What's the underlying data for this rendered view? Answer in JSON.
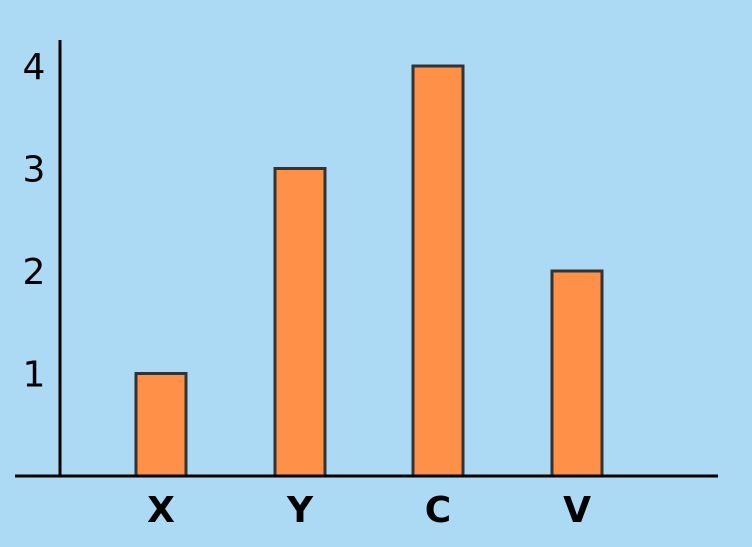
{
  "chart_data": {
    "type": "bar",
    "categories": [
      "X",
      "Y",
      "C",
      "V"
    ],
    "values": [
      1,
      3,
      4,
      2
    ],
    "y_ticks": [
      "1",
      "2",
      "3",
      "4"
    ],
    "ylim": [
      0,
      4.3
    ],
    "title": "",
    "xlabel": "",
    "ylabel": "",
    "grid": false,
    "legend": "none"
  },
  "colors": {
    "background": "#acdaf5",
    "bar_fill": "#fe9147",
    "bar_stroke": "#333333",
    "axis": "#000000"
  }
}
